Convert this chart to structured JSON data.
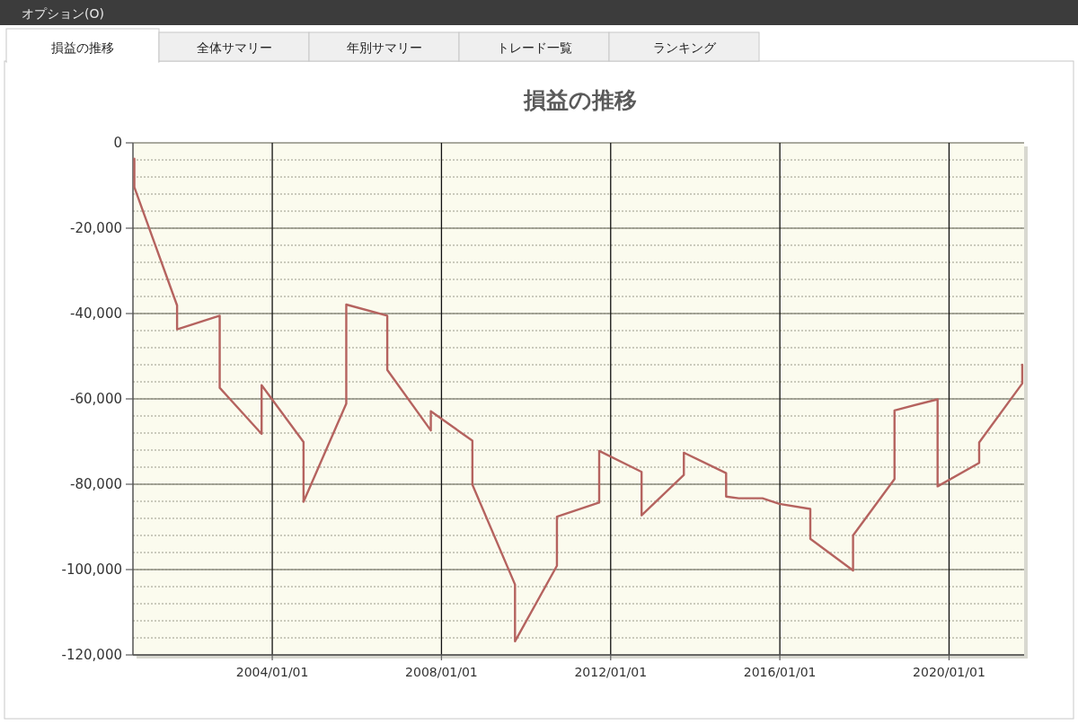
{
  "chart_data": {
    "type": "line",
    "title": "損益の推移",
    "annotations": [
      "オプション(O)",
      "損益の推移",
      "全体サマリー",
      "年別サマリー",
      "トレード一覧",
      "ランキング"
    ],
    "x": [
      "2000-09-27",
      "2000-09-27",
      "2001-10-01",
      "2001-10-01",
      "2002-10-04",
      "2002-10-04",
      "2003-10-01",
      "2003-10-01",
      "2004-09-27",
      "2004-09-27",
      "2005-10-01",
      "2005-10-01",
      "2006-09-20",
      "2006-09-20",
      "2007-10-01",
      "2007-10-01",
      "2008-09-24",
      "2008-09-24",
      "2009-09-27",
      "2009-09-27",
      "2010-09-24",
      "2010-09-24",
      "2011-09-24",
      "2011-09-24",
      "2012-09-24",
      "2012-09-24",
      "2013-09-24",
      "2013-09-24",
      "2014-09-24",
      "2014-09-24",
      "2015-01-10",
      "2015-08-04",
      "2015-12-28",
      "2016-09-20",
      "2016-09-20",
      "2017-09-24",
      "2017-09-24",
      "2018-09-17",
      "2018-09-17",
      "2019-09-24",
      "2019-09-24",
      "2020-09-17",
      "2020-09-17",
      "2021-09-24",
      "2021-09-24"
    ],
    "series": [
      {
        "color": "#b5635f",
        "values": [
          -3700,
          -10400,
          -38100,
          -43700,
          -40500,
          -57400,
          -68200,
          -56800,
          -70100,
          -84100,
          -61100,
          -37900,
          -40500,
          -53200,
          -67400,
          -62900,
          -69800,
          -80100,
          -103500,
          -116800,
          -99100,
          -87600,
          -84300,
          -72200,
          -77100,
          -87300,
          -77800,
          -72600,
          -77400,
          -82900,
          -83300,
          -83300,
          -84600,
          -85800,
          -92800,
          -100200,
          -92000,
          -78800,
          -62700,
          -60100,
          -80500,
          -75000,
          -70200,
          -56400,
          -52000
        ]
      }
    ],
    "xlim": [
      "2000-09-15",
      "2021-10-10"
    ],
    "xticks": [
      {
        "value": "2004-01-01",
        "label": "2004/01/01"
      },
      {
        "value": "2008-01-01",
        "label": "2008/01/01"
      },
      {
        "value": "2012-01-01",
        "label": "2012/01/01"
      },
      {
        "value": "2016-01-01",
        "label": "2016/01/01"
      },
      {
        "value": "2020-01-01",
        "label": "2020/01/01"
      }
    ],
    "ylim": [
      -120000,
      0
    ],
    "yticks": [
      0,
      {
        "value": -20000,
        "label": "-20,000"
      },
      {
        "value": -40000,
        "label": "-40,000"
      },
      {
        "value": -60000,
        "label": "-60,000"
      },
      {
        "value": -80000,
        "label": "-80,000"
      },
      {
        "value": -100000,
        "label": "-100,000"
      },
      {
        "value": -120000,
        "label": "-120,000"
      }
    ],
    "grid": true,
    "marker": "none",
    "line_style": "solid"
  }
}
